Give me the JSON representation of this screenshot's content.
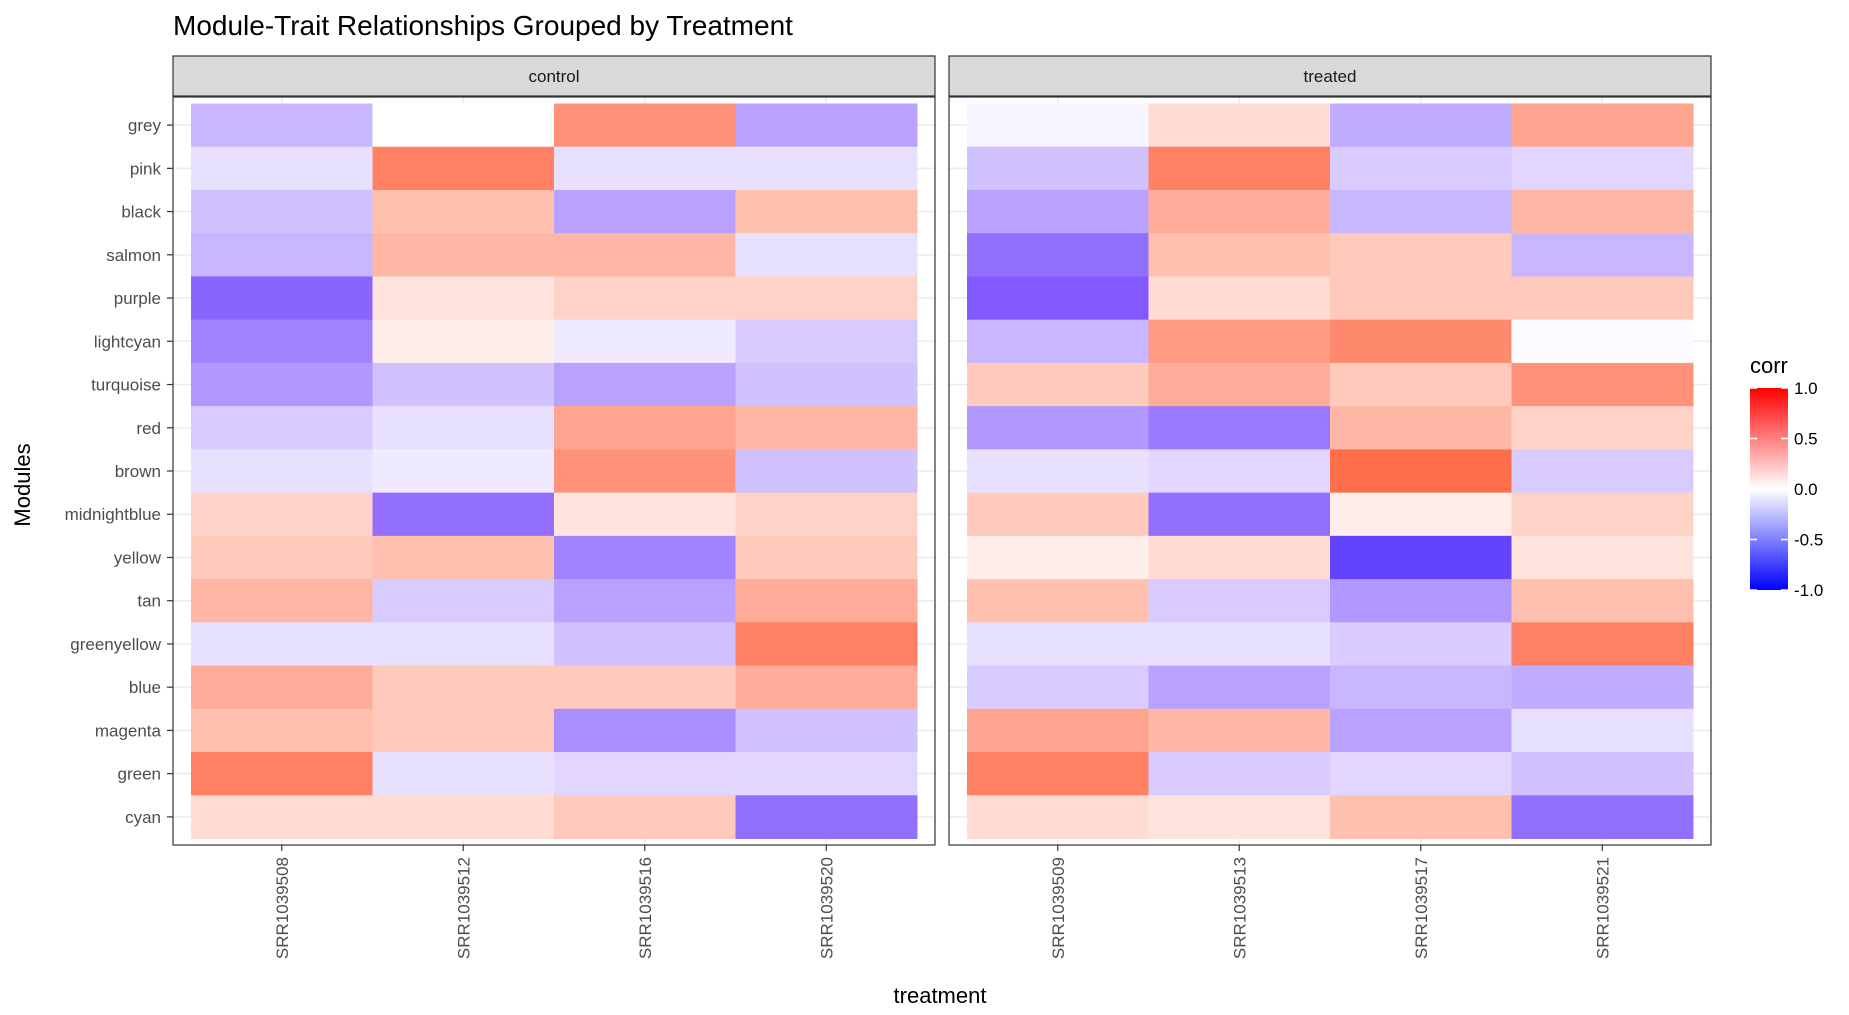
{
  "chart_data": {
    "type": "heatmap",
    "title": "Module-Trait Relationships Grouped by Treatment",
    "xlabel": "treatment",
    "ylabel": "Modules",
    "rows": [
      "grey",
      "pink",
      "black",
      "salmon",
      "purple",
      "lightcyan",
      "turquoise",
      "red",
      "brown",
      "midnightblue",
      "yellow",
      "tan",
      "greenyellow",
      "blue",
      "magenta",
      "green",
      "cyan"
    ],
    "panels": [
      {
        "name": "control",
        "columns": [
          "SRR1039508",
          "SRR1039512",
          "SRR1039516",
          "SRR1039520"
        ],
        "values": [
          [
            -0.35,
            0.0,
            0.6,
            -0.45
          ],
          [
            -0.15,
            0.7,
            -0.15,
            -0.15
          ],
          [
            -0.3,
            0.35,
            -0.45,
            0.35
          ],
          [
            -0.35,
            0.4,
            0.4,
            -0.15
          ],
          [
            -0.75,
            0.15,
            0.25,
            0.25
          ],
          [
            -0.6,
            0.1,
            -0.1,
            -0.25
          ],
          [
            -0.5,
            -0.3,
            -0.45,
            -0.3
          ],
          [
            -0.25,
            -0.15,
            0.5,
            0.4
          ],
          [
            -0.15,
            -0.1,
            0.6,
            -0.3
          ],
          [
            0.25,
            -0.7,
            0.15,
            0.25
          ],
          [
            0.3,
            0.35,
            -0.6,
            0.3
          ],
          [
            0.4,
            -0.25,
            -0.45,
            0.45
          ],
          [
            -0.15,
            -0.15,
            -0.3,
            0.7
          ],
          [
            0.45,
            0.3,
            0.3,
            0.45
          ],
          [
            0.35,
            0.3,
            -0.55,
            -0.3
          ],
          [
            0.7,
            -0.15,
            -0.2,
            -0.2
          ],
          [
            0.2,
            0.2,
            0.3,
            -0.7
          ]
        ]
      },
      {
        "name": "treated",
        "columns": [
          "SRR1039509",
          "SRR1039513",
          "SRR1039517",
          "SRR1039521"
        ],
        "values": [
          [
            -0.05,
            0.2,
            -0.4,
            0.5
          ],
          [
            -0.3,
            0.7,
            -0.25,
            -0.2
          ],
          [
            -0.45,
            0.45,
            -0.35,
            0.4
          ],
          [
            -0.7,
            0.35,
            0.3,
            -0.35
          ],
          [
            -0.8,
            0.2,
            0.3,
            0.3
          ],
          [
            -0.35,
            0.55,
            0.65,
            -0.02
          ],
          [
            0.3,
            0.45,
            0.3,
            0.6
          ],
          [
            -0.5,
            -0.65,
            0.4,
            0.25
          ],
          [
            -0.15,
            -0.2,
            0.8,
            -0.25
          ],
          [
            0.3,
            -0.7,
            0.1,
            0.25
          ],
          [
            0.1,
            0.2,
            -0.85,
            0.15
          ],
          [
            0.35,
            -0.25,
            -0.5,
            0.35
          ],
          [
            -0.15,
            -0.15,
            -0.25,
            0.7
          ],
          [
            -0.25,
            -0.45,
            -0.35,
            -0.4
          ],
          [
            0.5,
            0.4,
            -0.45,
            -0.15
          ],
          [
            0.7,
            -0.25,
            -0.2,
            -0.3
          ],
          [
            0.2,
            0.15,
            0.35,
            -0.7
          ]
        ]
      }
    ],
    "legend": {
      "title": "corr",
      "ticks": [
        "1.0",
        "0.5",
        "0.0",
        "-0.5",
        "-1.0"
      ],
      "range": [
        -1.0,
        1.0
      ],
      "low_color": "#0000ff",
      "mid_color": "#ffffff",
      "high_color": "#ff0000",
      "position": "right"
    }
  }
}
